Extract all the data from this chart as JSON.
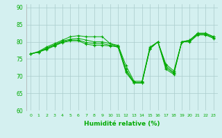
{
  "title": "",
  "xlabel": "Humidité relative (%)",
  "ylabel": "",
  "background_color": "#d4f0f0",
  "grid_color": "#aacccc",
  "line_color": "#00aa00",
  "marker": "+",
  "xlim": [
    -0.5,
    23.5
  ],
  "ylim": [
    60,
    91
  ],
  "yticks": [
    60,
    65,
    70,
    75,
    80,
    85,
    90
  ],
  "xticks": [
    0,
    1,
    2,
    3,
    4,
    5,
    6,
    7,
    8,
    9,
    10,
    11,
    12,
    13,
    14,
    15,
    16,
    17,
    18,
    19,
    20,
    21,
    22,
    23
  ],
  "series": [
    [
      76.5,
      77.2,
      78.5,
      79.5,
      80.5,
      81.5,
      81.8,
      81.5,
      81.5,
      81.5,
      79.5,
      78.5,
      71.5,
      68.0,
      68.0,
      78.0,
      80.0,
      73.5,
      71.5,
      80.0,
      80.5,
      82.5,
      82.5,
      81.5
    ],
    [
      76.5,
      77.0,
      78.2,
      79.2,
      80.2,
      80.8,
      81.0,
      80.5,
      80.0,
      80.0,
      79.5,
      79.0,
      73.0,
      68.5,
      68.5,
      78.5,
      80.0,
      73.0,
      71.0,
      80.0,
      80.5,
      82.5,
      82.5,
      81.5
    ],
    [
      76.5,
      77.0,
      78.0,
      79.0,
      80.0,
      80.5,
      80.5,
      79.8,
      79.5,
      79.5,
      79.0,
      78.8,
      72.0,
      68.2,
      68.2,
      78.2,
      80.0,
      72.5,
      70.8,
      80.0,
      80.2,
      82.2,
      82.2,
      81.2
    ],
    [
      76.5,
      77.0,
      77.8,
      78.8,
      79.8,
      80.3,
      80.3,
      79.3,
      79.0,
      79.0,
      78.8,
      78.5,
      71.0,
      68.0,
      68.0,
      78.0,
      80.0,
      72.0,
      70.5,
      80.0,
      80.0,
      82.0,
      82.0,
      81.0
    ]
  ]
}
